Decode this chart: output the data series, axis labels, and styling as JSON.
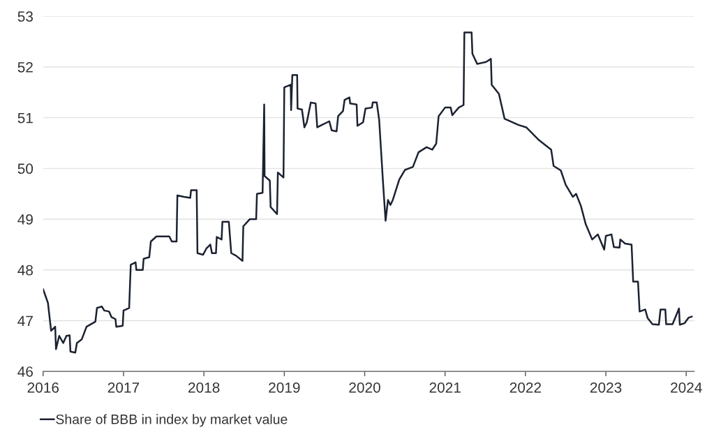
{
  "chart_data": {
    "type": "line",
    "x": [
      2016.0,
      2016.06,
      2016.09,
      2016.1,
      2016.15,
      2016.16,
      2016.2,
      2016.25,
      2016.29,
      2016.33,
      2016.34,
      2016.4,
      2016.42,
      2016.48,
      2016.54,
      2016.65,
      2016.67,
      2016.73,
      2016.76,
      2016.82,
      2016.85,
      2016.9,
      2016.91,
      2016.99,
      2017.0,
      2017.07,
      2017.09,
      2017.15,
      2017.16,
      2017.24,
      2017.25,
      2017.32,
      2017.34,
      2017.41,
      2017.57,
      2017.6,
      2017.66,
      2017.67,
      2017.75,
      2017.83,
      2017.84,
      2017.91,
      2017.92,
      2017.99,
      2018.03,
      2018.08,
      2018.1,
      2018.15,
      2018.16,
      2018.22,
      2018.23,
      2018.31,
      2018.34,
      2018.4,
      2018.48,
      2018.49,
      2018.57,
      2018.65,
      2018.66,
      2018.73,
      2018.75,
      2018.755,
      2018.82,
      2018.83,
      2018.91,
      2018.92,
      2018.99,
      2019.0,
      2019.08,
      2019.085,
      2019.1,
      2019.16,
      2019.165,
      2019.22,
      2019.25,
      2019.28,
      2019.33,
      2019.39,
      2019.41,
      2019.47,
      2019.56,
      2019.59,
      2019.65,
      2019.67,
      2019.73,
      2019.75,
      2019.81,
      2019.82,
      2019.9,
      2019.91,
      2019.98,
      2020.01,
      2020.09,
      2020.1,
      2020.15,
      2020.18,
      2020.23,
      2020.26,
      2020.29,
      2020.32,
      2020.35,
      2020.43,
      2020.5,
      2020.6,
      2020.67,
      2020.77,
      2020.84,
      2020.89,
      2020.92,
      2021.0,
      2021.07,
      2021.09,
      2021.17,
      2021.23,
      2021.24,
      2021.33,
      2021.34,
      2021.4,
      2021.51,
      2021.57,
      2021.58,
      2021.67,
      2021.74,
      2021.91,
      2022.01,
      2022.16,
      2022.32,
      2022.35,
      2022.44,
      2022.5,
      2022.59,
      2022.63,
      2022.69,
      2022.75,
      2022.83,
      2022.9,
      2022.98,
      2023.0,
      2023.07,
      2023.1,
      2023.17,
      2023.18,
      2023.24,
      2023.32,
      2023.34,
      2023.4,
      2023.42,
      2023.49,
      2023.52,
      2023.58,
      2023.66,
      2023.68,
      2023.74,
      2023.75,
      2023.83,
      2023.91,
      2023.92,
      2023.98,
      2024.03,
      2024.07
    ],
    "series": [
      {
        "name": "Share of BBB in index by market value",
        "color": "#1b2230",
        "values": [
          47.62,
          47.35,
          46.93,
          46.8,
          46.88,
          46.44,
          46.7,
          46.56,
          46.7,
          46.71,
          46.39,
          46.37,
          46.56,
          46.63,
          46.88,
          46.98,
          47.25,
          47.28,
          47.2,
          47.18,
          47.07,
          47.03,
          46.88,
          46.9,
          47.2,
          47.25,
          48.1,
          48.15,
          48.0,
          48.0,
          48.22,
          48.25,
          48.56,
          48.66,
          48.66,
          48.56,
          48.56,
          49.47,
          49.44,
          49.42,
          49.57,
          49.57,
          48.33,
          48.3,
          48.42,
          48.5,
          48.33,
          48.33,
          48.65,
          48.6,
          48.95,
          48.95,
          48.33,
          48.28,
          48.18,
          48.86,
          49.0,
          49.0,
          49.5,
          49.52,
          51.26,
          49.85,
          49.76,
          49.24,
          49.1,
          49.92,
          49.82,
          51.6,
          51.65,
          51.15,
          51.84,
          51.84,
          51.18,
          51.16,
          50.81,
          50.91,
          51.3,
          51.28,
          50.81,
          50.86,
          50.93,
          50.75,
          50.73,
          51.03,
          51.13,
          51.35,
          51.4,
          51.28,
          51.26,
          50.84,
          50.91,
          51.18,
          51.2,
          51.3,
          51.3,
          50.96,
          49.68,
          48.97,
          49.38,
          49.28,
          49.38,
          49.78,
          49.97,
          50.03,
          50.32,
          50.42,
          50.37,
          50.49,
          51.03,
          51.2,
          51.2,
          51.05,
          51.2,
          51.25,
          52.68,
          52.68,
          52.26,
          52.06,
          52.1,
          52.16,
          51.65,
          51.47,
          50.98,
          50.86,
          50.81,
          50.57,
          50.37,
          50.05,
          49.96,
          49.68,
          49.44,
          49.5,
          49.26,
          48.9,
          48.6,
          48.7,
          48.4,
          48.67,
          48.7,
          48.45,
          48.44,
          48.6,
          48.52,
          48.5,
          47.77,
          47.77,
          47.18,
          47.22,
          47.05,
          46.93,
          46.92,
          47.22,
          47.22,
          46.93,
          46.93,
          47.24,
          46.92,
          46.95,
          47.06,
          47.08
        ]
      }
    ],
    "xlim": [
      2016,
      2024.1
    ],
    "xticks": [
      2016,
      2017,
      2018,
      2019,
      2020,
      2021,
      2022,
      2023,
      2024
    ],
    "ylim": [
      46,
      53
    ],
    "yticks": [
      46,
      47,
      48,
      49,
      50,
      51,
      52,
      53
    ],
    "grid": "y",
    "legend": "bottom left",
    "marker": "none",
    "line_style": "solid"
  }
}
